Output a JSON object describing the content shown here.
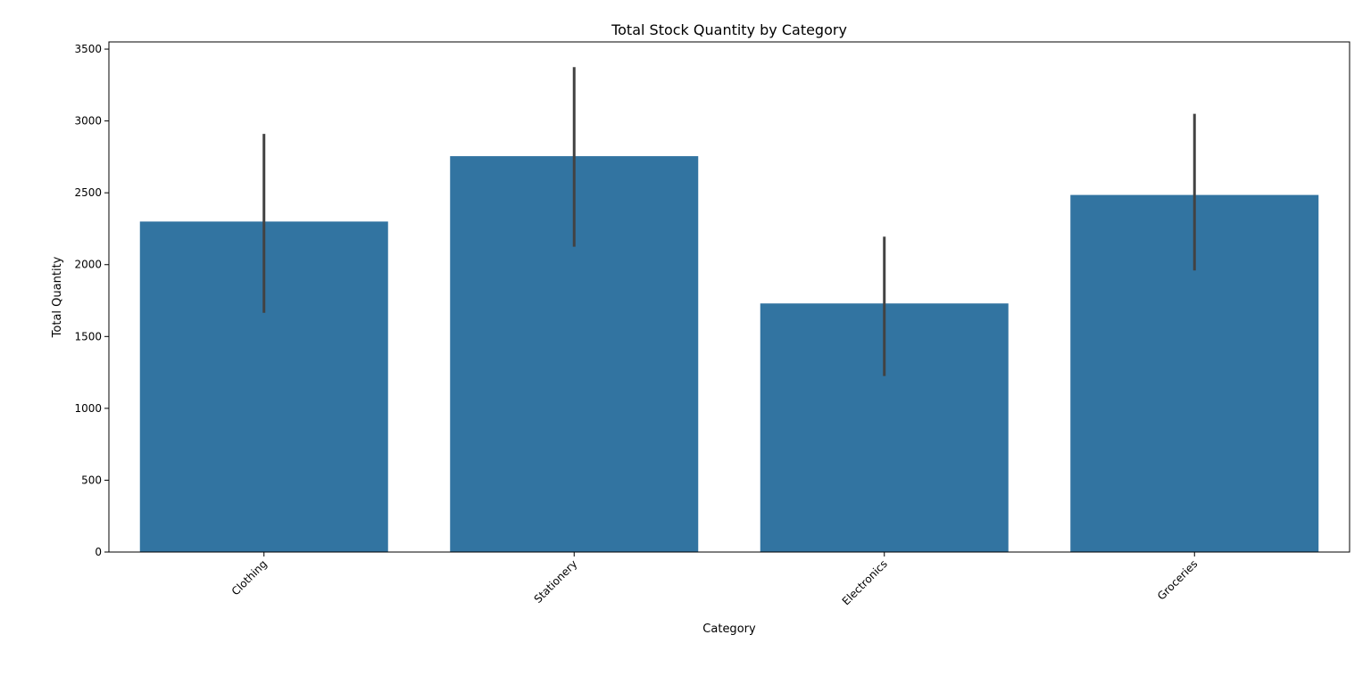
{
  "chart_data": {
    "type": "bar",
    "title": "Total Stock Quantity by Category",
    "xlabel": "Category",
    "ylabel": "Total Quantity",
    "categories": [
      "Clothing",
      "Stationery",
      "Electronics",
      "Groceries"
    ],
    "values": [
      2300,
      2755,
      1730,
      2485
    ],
    "error_bars": [
      {
        "low": 1665,
        "high": 2910
      },
      {
        "low": 2125,
        "high": 3375
      },
      {
        "low": 1225,
        "high": 2195
      },
      {
        "low": 1960,
        "high": 3050
      }
    ],
    "ylim": [
      0,
      3550
    ],
    "yticks": [
      0,
      500,
      1000,
      1500,
      2000,
      2500,
      3000,
      3500
    ],
    "x_tick_rotation": 45,
    "grid": false,
    "legend": "none",
    "colors": {
      "bar": "#3274a1",
      "error_bar": "#424242",
      "axis": "#000000"
    }
  }
}
